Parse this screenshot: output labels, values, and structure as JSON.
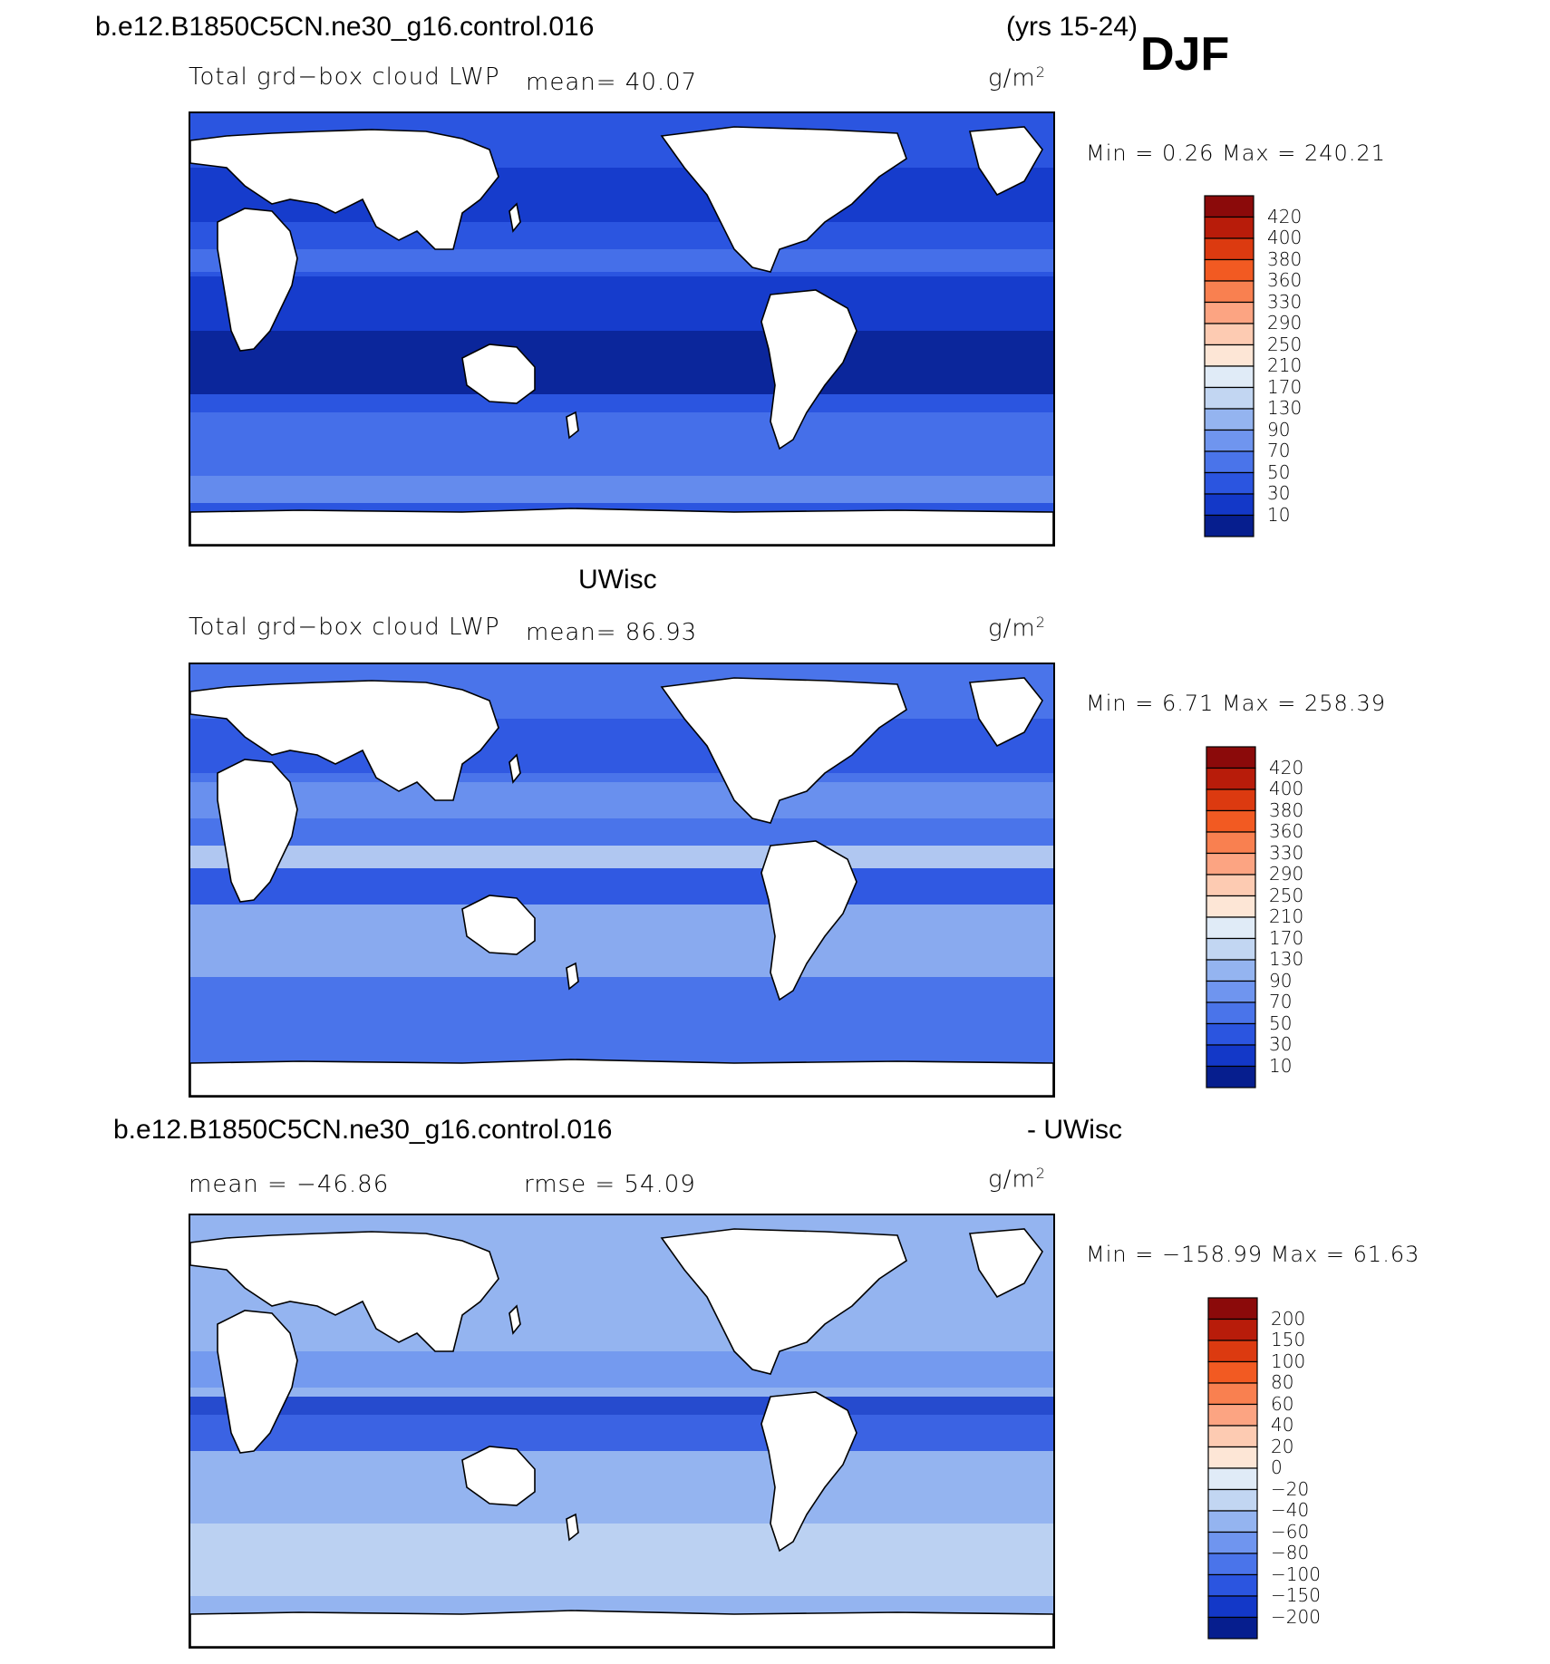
{
  "header": {
    "case_name": "b.e12.B1850C5CN.ne30_g16.control.016",
    "years": "(yrs 15-24)",
    "season": "DJF"
  },
  "panels": [
    {
      "id": "model",
      "field_label": "Total grd−box cloud LWP",
      "mean_text": "mean=   40.07",
      "units": "g/m",
      "units_sup": "2",
      "minmax": "Min =    0.26  Max  =  240.21",
      "colorbar_labels": [
        "420",
        "400",
        "380",
        "360",
        "330",
        "290",
        "250",
        "210",
        "170",
        "130",
        "90",
        "70",
        "50",
        "30",
        "10"
      ],
      "colorbar_colors": [
        "#8b0a0a",
        "#b81c0a",
        "#dc3a10",
        "#f25a22",
        "#f98050",
        "#fca482",
        "#fdcbb2",
        "#fde6d6",
        "#e0ebf7",
        "#c2d6f2",
        "#94b4f0",
        "#6f95ef",
        "#4a74ea",
        "#2b55e0",
        "#1338c8",
        "#061e8e"
      ]
    },
    {
      "id": "obs",
      "title": "UWisc",
      "field_label": "Total grd−box cloud LWP",
      "mean_text": "mean=   86.93",
      "units": "g/m",
      "units_sup": "2",
      "minmax": "Min =    6.71  Max  =  258.39",
      "colorbar_labels": [
        "420",
        "400",
        "380",
        "360",
        "330",
        "290",
        "250",
        "210",
        "170",
        "130",
        "90",
        "70",
        "50",
        "30",
        "10"
      ],
      "colorbar_colors": [
        "#8b0a0a",
        "#b81c0a",
        "#dc3a10",
        "#f25a22",
        "#f98050",
        "#fca482",
        "#fdcbb2",
        "#fde6d6",
        "#e0ebf7",
        "#c2d6f2",
        "#94b4f0",
        "#6f95ef",
        "#4a74ea",
        "#2b55e0",
        "#1338c8",
        "#061e8e"
      ]
    },
    {
      "id": "diff",
      "title_left": "b.e12.B1850C5CN.ne30_g16.control.016",
      "title_right": "- UWisc",
      "mean_text": "mean =  −46.86",
      "rmse_text": "rmse  =    54.09",
      "units": "g/m",
      "units_sup": "2",
      "minmax": "Min  =  −158.99  Max  =    61.63",
      "colorbar_labels": [
        "200",
        "150",
        "100",
        "80",
        "60",
        "40",
        "20",
        "0",
        "−20",
        "−40",
        "−60",
        "−80",
        "−100",
        "−150",
        "−200"
      ],
      "colorbar_colors": [
        "#8b0a0a",
        "#b81c0a",
        "#dc3a10",
        "#f25a22",
        "#f98050",
        "#fca482",
        "#fdcbb2",
        "#fde6d6",
        "#e0ebf7",
        "#c2d6f2",
        "#94b4f0",
        "#6f95ef",
        "#4a74ea",
        "#2b55e0",
        "#1338c8",
        "#061e8e"
      ]
    }
  ]
}
